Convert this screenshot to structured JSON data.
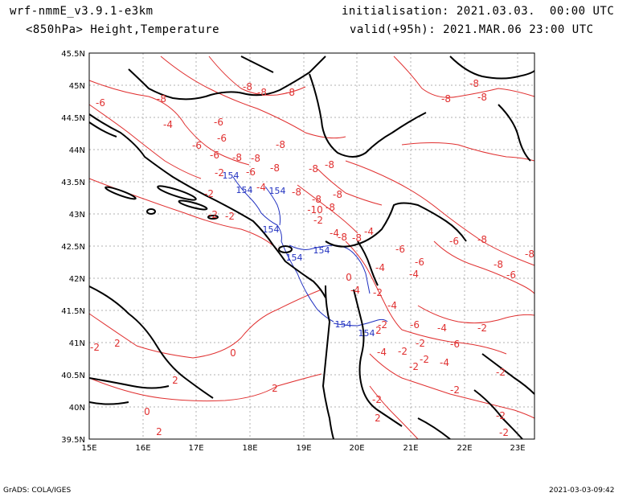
{
  "header": {
    "model": "wrf-nmmE_v3.9.1-e3km",
    "field": "<850hPa> Height,Temperature",
    "init": "initialisation: 2021.03.03.  00:00 UTC",
    "valid": "valid(+95h): 2021.MAR.06 23:00 UTC"
  },
  "footer": {
    "left": "GrADS: COLA/IGES",
    "right": "2021-03-03-09:42"
  },
  "map": {
    "lon_range": [
      15,
      23.3
    ],
    "lat_range": [
      39.5,
      45.5
    ],
    "lon_ticks": [
      "15E",
      "16E",
      "17E",
      "18E",
      "19E",
      "20E",
      "21E",
      "22E",
      "23E"
    ],
    "lat_ticks": [
      "39.5N",
      "40N",
      "40.5N",
      "41N",
      "41.5N",
      "42N",
      "42.5N",
      "43N",
      "43.5N",
      "44N",
      "44.5N",
      "45N",
      "45.5N"
    ],
    "temperature_labels": [
      "-6",
      "-8",
      "-8",
      "-8",
      "-8",
      "-8",
      "-8",
      "-8",
      "-6",
      "-6",
      "-4",
      "-6",
      "-6",
      "-8",
      "-8",
      "-8",
      "-8",
      "-2",
      "-6",
      "-8",
      "-8",
      "-2",
      "-4",
      "-8",
      "-8",
      "-8",
      "-2",
      "-2",
      "-10",
      "-8",
      "-2",
      "-4",
      "-8",
      "-8",
      "-4",
      "-6",
      "-6",
      "-8",
      "-8",
      "-8",
      "-6",
      "-4",
      "-4",
      "-2",
      "0",
      "-6",
      "-4",
      "-4",
      "-2",
      "-6",
      "-4",
      "-4",
      "-2",
      "-2",
      "-6",
      "-4",
      "-2",
      "-2",
      "-2",
      "-2",
      "-2",
      "-2",
      "-2",
      "-2",
      "0",
      "-2",
      "2",
      "2",
      "0",
      "2",
      "2",
      "2",
      "2"
    ],
    "height_labels": [
      "154",
      "154",
      "154",
      "154",
      "154",
      "154",
      "154",
      "154"
    ],
    "colors": {
      "temperature": "#e03030",
      "height": "#2030c0",
      "coast": "#000000",
      "grid": "#b0b0b0"
    }
  }
}
